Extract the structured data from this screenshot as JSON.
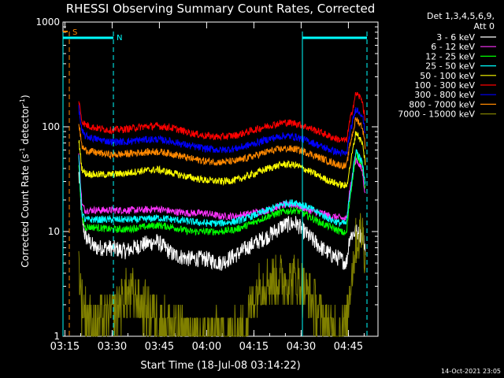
{
  "chart_data": {
    "type": "line",
    "title": "RHESSI Observing Summary Count Rates, Corrected",
    "xlabel": "Start Time (18-Jul-08 03:14:22)",
    "ylabel_main": "Corrected Count Rate (s",
    "ylabel_sup1": "-1",
    "ylabel_mid": " detector",
    "ylabel_sup2": "-1",
    "ylabel_end": ")",
    "y_scale": "log",
    "ylim": [
      1,
      1000
    ],
    "y_ticks": [
      {
        "value": 1,
        "label": "1"
      },
      {
        "value": 10,
        "label": "10"
      },
      {
        "value": 100,
        "label": "100"
      },
      {
        "value": 1000,
        "label": "1000"
      }
    ],
    "x_unit": "minutes since 03:14:22",
    "xlim": [
      0,
      100
    ],
    "x_ticks": [
      {
        "value": 0.6,
        "label": "03:15"
      },
      {
        "value": 15.6,
        "label": "03:30"
      },
      {
        "value": 30.6,
        "label": "03:45"
      },
      {
        "value": 45.6,
        "label": "04:00"
      },
      {
        "value": 60.6,
        "label": "04:15"
      },
      {
        "value": 75.6,
        "label": "04:30"
      },
      {
        "value": 90.6,
        "label": "04:45"
      }
    ],
    "legend": {
      "position": "right",
      "header": [
        "Det 1,3,4,5,6,9,",
        "Att 0"
      ]
    },
    "series": [
      {
        "name": "3 - 6 keV",
        "color": "#ffffff",
        "x": [
          5,
          6,
          7,
          10,
          15,
          20,
          25,
          30,
          35,
          40,
          45,
          50,
          55,
          60,
          65,
          70,
          74,
          78,
          82,
          85,
          88,
          90,
          91,
          93,
          95,
          96
        ],
        "values": [
          35,
          14,
          9,
          7,
          7,
          6.5,
          7.5,
          8,
          6,
          5.5,
          5.5,
          5,
          6,
          7.5,
          9,
          11.5,
          12,
          9,
          7,
          6,
          5.5,
          5,
          9,
          10,
          9,
          7
        ]
      },
      {
        "name": "6 - 12 keV",
        "color": "#ff33ff",
        "x": [
          5,
          6,
          7,
          10,
          15,
          20,
          25,
          30,
          35,
          40,
          45,
          50,
          55,
          60,
          65,
          70,
          74,
          78,
          82,
          85,
          88,
          90,
          91,
          93,
          95,
          96
        ],
        "values": [
          55,
          18,
          16,
          16,
          16,
          16,
          16,
          16.5,
          15.5,
          15,
          15,
          14,
          14,
          15,
          16,
          18,
          18,
          16,
          15,
          14,
          13.5,
          13,
          25,
          50,
          38,
          22
        ]
      },
      {
        "name": "12 - 25 keV",
        "color": "#00ff00",
        "x": [
          5,
          6,
          7,
          10,
          15,
          20,
          25,
          30,
          35,
          40,
          45,
          50,
          55,
          60,
          65,
          70,
          74,
          78,
          82,
          85,
          88,
          90,
          91,
          93,
          95,
          96
        ],
        "values": [
          45,
          14,
          11,
          11,
          10.5,
          10.5,
          11,
          11.5,
          11,
          10,
          10,
          10,
          10.5,
          12,
          14,
          15.5,
          16,
          14,
          12,
          11,
          10,
          9.5,
          20,
          55,
          45,
          25
        ]
      },
      {
        "name": "25 - 50 keV",
        "color": "#00ffff",
        "x": [
          5,
          6,
          7,
          10,
          15,
          20,
          25,
          30,
          35,
          40,
          45,
          50,
          55,
          60,
          65,
          70,
          74,
          78,
          82,
          85,
          88,
          90,
          91,
          93,
          95,
          96
        ],
        "values": [
          50,
          15,
          13,
          13,
          13,
          13,
          13,
          13.5,
          13,
          12.5,
          12,
          12,
          12.5,
          14,
          16,
          18.5,
          19,
          17,
          14.5,
          13,
          12,
          12,
          22,
          60,
          45,
          28
        ]
      },
      {
        "name": "50 - 100 keV",
        "color": "#ffff00",
        "x": [
          5,
          6,
          7,
          10,
          15,
          20,
          25,
          30,
          35,
          40,
          45,
          50,
          55,
          60,
          65,
          70,
          74,
          78,
          82,
          85,
          88,
          90,
          91,
          93,
          95,
          96
        ],
        "values": [
          75,
          40,
          36,
          35,
          35,
          36,
          38,
          39,
          36,
          33,
          31,
          30,
          31,
          35,
          40,
          44,
          43,
          38,
          33,
          30,
          28,
          27,
          40,
          90,
          70,
          45
        ]
      },
      {
        "name": "100 - 300 keV",
        "color": "#ff0000",
        "x": [
          5,
          6,
          7,
          10,
          15,
          20,
          25,
          30,
          35,
          40,
          45,
          50,
          55,
          60,
          65,
          70,
          74,
          78,
          82,
          85,
          88,
          90,
          91,
          93,
          95,
          96
        ],
        "values": [
          175,
          115,
          105,
          98,
          93,
          95,
          100,
          102,
          97,
          88,
          82,
          80,
          83,
          92,
          102,
          110,
          108,
          98,
          88,
          80,
          75,
          74,
          110,
          210,
          180,
          110
        ]
      },
      {
        "name": "300 - 800 keV",
        "color": "#0000ff",
        "x": [
          5,
          6,
          7,
          10,
          15,
          20,
          25,
          30,
          35,
          40,
          45,
          50,
          55,
          60,
          65,
          70,
          74,
          78,
          82,
          85,
          88,
          90,
          91,
          93,
          95,
          96
        ],
        "values": [
          150,
          90,
          82,
          77,
          72,
          72,
          75,
          76,
          72,
          66,
          62,
          60,
          62,
          68,
          76,
          82,
          80,
          73,
          65,
          60,
          56,
          55,
          85,
          150,
          130,
          85
        ]
      },
      {
        "name": "800 - 7000 keV",
        "color": "#ff8800",
        "x": [
          5,
          6,
          7,
          10,
          15,
          20,
          25,
          30,
          35,
          40,
          45,
          50,
          55,
          60,
          65,
          70,
          74,
          78,
          82,
          85,
          88,
          90,
          91,
          93,
          95,
          96
        ],
        "values": [
          110,
          65,
          60,
          57,
          54,
          55,
          57,
          58,
          55,
          50,
          47,
          46,
          47,
          52,
          58,
          62,
          61,
          56,
          50,
          46,
          43,
          42,
          65,
          120,
          100,
          65
        ]
      },
      {
        "name": "7000 - 15000 keV",
        "color": "#808000",
        "x": [
          5,
          6,
          8,
          10,
          15,
          20,
          22,
          25,
          30,
          35,
          40,
          45,
          50,
          55,
          58,
          60,
          62,
          65,
          70,
          74,
          78,
          82,
          85,
          88,
          90,
          91,
          93,
          95,
          96
        ],
        "values": [
          5,
          2,
          1.5,
          1.3,
          1.5,
          2.5,
          2.5,
          2,
          1.5,
          1.2,
          1,
          1,
          1,
          1,
          1.3,
          2,
          3,
          3.5,
          3.5,
          3.5,
          2.5,
          1.5,
          1.2,
          1.2,
          1.3,
          3,
          8,
          10,
          6
        ]
      }
    ],
    "annotations": {
      "flag_bar_label_s": "S",
      "flag_bar_label_n": "N",
      "saa_bar_1": {
        "start": 0,
        "end": 16
      },
      "saa_bar_2": {
        "start": 76,
        "end": 96.5
      },
      "s_flag_line": 2.0,
      "n_lines": [
        16,
        96.5
      ],
      "solid_lines": [
        0,
        76
      ]
    }
  },
  "footer": {
    "timestamp": "14-Oct-2021 23:05"
  }
}
